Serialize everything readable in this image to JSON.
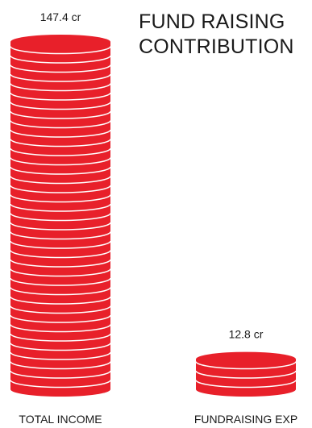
{
  "chart_data": {
    "type": "bar",
    "style": "stacked-coins",
    "title_lines": [
      "FUND RAISING",
      "CONTRIBUTION"
    ],
    "categories": [
      "TOTAL INCOME",
      "FUNDRAISING EXP"
    ],
    "values": [
      147.4,
      12.8
    ],
    "value_labels": [
      "147.4 cr",
      "12.8 cr"
    ],
    "colors": {
      "coin_face": "#e8202a",
      "coin_stripe": "#ffffff",
      "text": "#1a1a1a"
    }
  }
}
